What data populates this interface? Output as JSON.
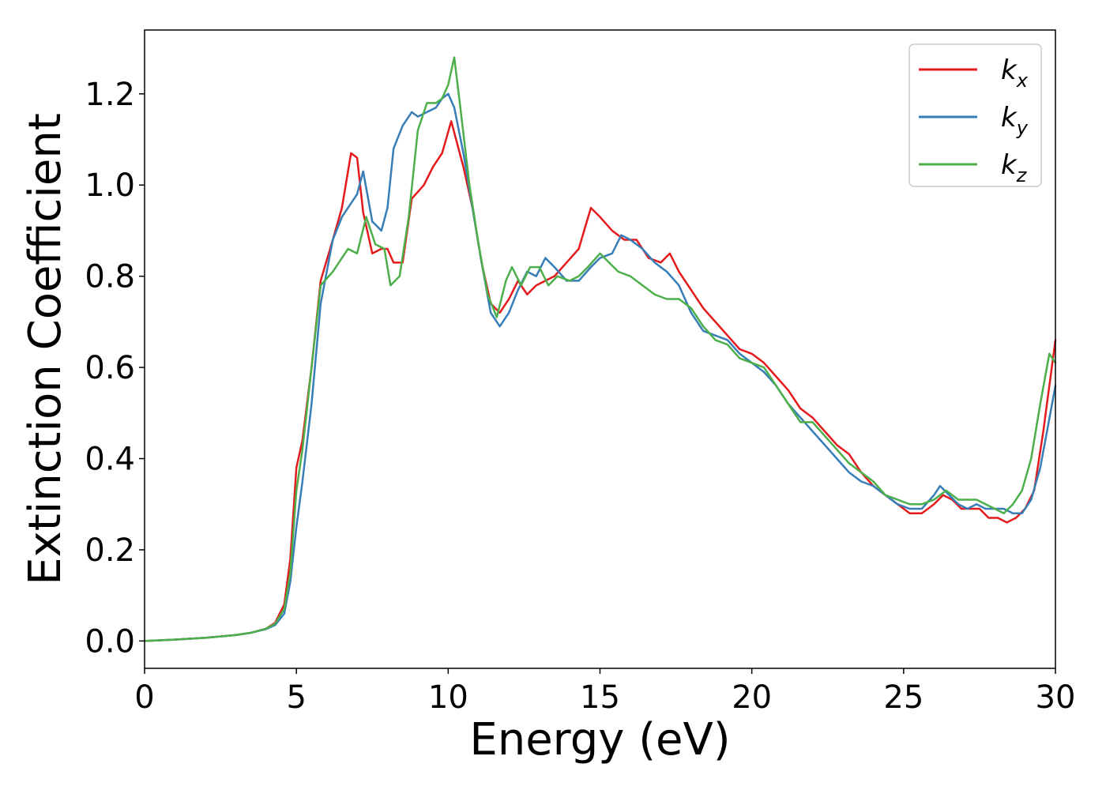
{
  "chart_data": {
    "type": "line",
    "title": "",
    "xlabel": "Energy (eV)",
    "ylabel": "Extinction Coefficient",
    "xlim": [
      0,
      30
    ],
    "ylim": [
      -0.06,
      1.34
    ],
    "xticks": [
      0,
      5,
      10,
      15,
      20,
      25,
      30
    ],
    "xtick_labels": [
      "0",
      "5",
      "10",
      "15",
      "20",
      "25",
      "30"
    ],
    "yticks": [
      0.0,
      0.2,
      0.4,
      0.6,
      0.8,
      1.0,
      1.2
    ],
    "ytick_labels": [
      "0.0",
      "0.2",
      "0.4",
      "0.6",
      "0.8",
      "1.0",
      "1.2"
    ],
    "grid": false,
    "legend_position": "top-right",
    "series": [
      {
        "name": "k",
        "subscript": "x",
        "color": "#e41a1c",
        "x": [
          0,
          1,
          2,
          3,
          3.5,
          4,
          4.3,
          4.6,
          4.8,
          5.0,
          5.2,
          5.5,
          5.8,
          6.2,
          6.5,
          6.8,
          7.0,
          7.2,
          7.5,
          7.8,
          8.0,
          8.2,
          8.5,
          8.8,
          9.2,
          9.5,
          9.8,
          10.1,
          10.3,
          10.5,
          10.8,
          11.1,
          11.4,
          11.7,
          12.0,
          12.3,
          12.6,
          12.9,
          13.2,
          13.5,
          13.9,
          14.3,
          14.7,
          15.0,
          15.4,
          15.8,
          16.2,
          16.6,
          17.0,
          17.3,
          17.6,
          18.0,
          18.4,
          18.8,
          19.2,
          19.6,
          20.0,
          20.4,
          20.8,
          21.2,
          21.6,
          22.0,
          22.4,
          22.8,
          23.2,
          23.6,
          24.0,
          24.4,
          24.8,
          25.2,
          25.6,
          26.0,
          26.3,
          26.6,
          26.9,
          27.2,
          27.5,
          27.8,
          28.1,
          28.4,
          28.7,
          29.0,
          29.3,
          29.6,
          30.0
        ],
        "y": [
          0.0,
          0.003,
          0.007,
          0.013,
          0.018,
          0.027,
          0.04,
          0.08,
          0.18,
          0.38,
          0.44,
          0.6,
          0.79,
          0.88,
          0.95,
          1.07,
          1.06,
          0.94,
          0.85,
          0.86,
          0.86,
          0.83,
          0.83,
          0.97,
          1.0,
          1.04,
          1.07,
          1.14,
          1.09,
          1.04,
          0.95,
          0.83,
          0.74,
          0.72,
          0.75,
          0.79,
          0.76,
          0.78,
          0.79,
          0.8,
          0.83,
          0.86,
          0.95,
          0.93,
          0.9,
          0.88,
          0.88,
          0.84,
          0.83,
          0.85,
          0.81,
          0.77,
          0.73,
          0.7,
          0.67,
          0.64,
          0.63,
          0.61,
          0.58,
          0.55,
          0.51,
          0.49,
          0.46,
          0.43,
          0.41,
          0.37,
          0.34,
          0.32,
          0.3,
          0.28,
          0.28,
          0.3,
          0.32,
          0.31,
          0.29,
          0.29,
          0.29,
          0.27,
          0.27,
          0.26,
          0.27,
          0.29,
          0.33,
          0.46,
          0.66
        ]
      },
      {
        "name": "k",
        "subscript": "y",
        "color": "#377eb8",
        "x": [
          0,
          1,
          2,
          3,
          3.5,
          4,
          4.3,
          4.6,
          4.8,
          5.0,
          5.2,
          5.5,
          5.8,
          6.2,
          6.5,
          6.8,
          7.0,
          7.2,
          7.5,
          7.8,
          8.0,
          8.2,
          8.5,
          8.8,
          9.0,
          9.3,
          9.6,
          9.8,
          10.0,
          10.2,
          10.5,
          10.8,
          11.1,
          11.4,
          11.7,
          12.0,
          12.3,
          12.6,
          12.9,
          13.2,
          13.5,
          13.9,
          14.3,
          14.7,
          15.0,
          15.4,
          15.7,
          16.0,
          16.4,
          16.8,
          17.2,
          17.6,
          18.0,
          18.4,
          18.8,
          19.2,
          19.6,
          20.0,
          20.4,
          20.8,
          21.2,
          21.6,
          22.0,
          22.4,
          22.8,
          23.2,
          23.6,
          24.0,
          24.4,
          24.8,
          25.2,
          25.6,
          26.0,
          26.2,
          26.5,
          26.8,
          27.1,
          27.4,
          27.7,
          28.0,
          28.3,
          28.6,
          28.9,
          29.2,
          29.5,
          30.0
        ],
        "y": [
          0.0,
          0.003,
          0.007,
          0.013,
          0.018,
          0.026,
          0.035,
          0.06,
          0.13,
          0.25,
          0.35,
          0.52,
          0.74,
          0.88,
          0.93,
          0.96,
          0.98,
          1.03,
          0.92,
          0.9,
          0.95,
          1.08,
          1.13,
          1.16,
          1.15,
          1.16,
          1.17,
          1.19,
          1.2,
          1.17,
          1.07,
          0.95,
          0.83,
          0.72,
          0.69,
          0.72,
          0.77,
          0.81,
          0.8,
          0.84,
          0.82,
          0.79,
          0.79,
          0.82,
          0.84,
          0.85,
          0.89,
          0.88,
          0.86,
          0.83,
          0.81,
          0.78,
          0.72,
          0.68,
          0.67,
          0.66,
          0.63,
          0.61,
          0.59,
          0.56,
          0.52,
          0.49,
          0.46,
          0.43,
          0.4,
          0.37,
          0.35,
          0.34,
          0.32,
          0.3,
          0.29,
          0.29,
          0.32,
          0.34,
          0.32,
          0.3,
          0.29,
          0.3,
          0.29,
          0.29,
          0.29,
          0.28,
          0.28,
          0.31,
          0.38,
          0.56
        ]
      },
      {
        "name": "k",
        "subscript": "z",
        "color": "#4daf4a",
        "x": [
          0,
          1,
          2,
          3,
          3.5,
          4,
          4.3,
          4.6,
          4.8,
          5.0,
          5.2,
          5.5,
          5.8,
          6.2,
          6.5,
          6.7,
          7.0,
          7.3,
          7.6,
          7.9,
          8.1,
          8.4,
          8.7,
          9.0,
          9.3,
          9.6,
          9.8,
          10.0,
          10.2,
          10.4,
          10.7,
          11.0,
          11.3,
          11.6,
          11.9,
          12.1,
          12.4,
          12.7,
          13.0,
          13.3,
          13.6,
          14.0,
          14.3,
          14.6,
          15.0,
          15.3,
          15.6,
          16.0,
          16.4,
          16.8,
          17.2,
          17.6,
          18.0,
          18.4,
          18.8,
          19.2,
          19.6,
          20.0,
          20.4,
          20.8,
          21.2,
          21.6,
          22.0,
          22.4,
          22.8,
          23.2,
          23.6,
          24.0,
          24.4,
          24.8,
          25.2,
          25.6,
          26.0,
          26.4,
          26.8,
          27.1,
          27.4,
          27.7,
          28.0,
          28.3,
          28.6,
          28.9,
          29.2,
          29.5,
          29.8,
          30.0
        ],
        "y": [
          0.0,
          0.003,
          0.007,
          0.013,
          0.018,
          0.027,
          0.038,
          0.07,
          0.15,
          0.33,
          0.42,
          0.6,
          0.78,
          0.81,
          0.84,
          0.86,
          0.85,
          0.93,
          0.87,
          0.86,
          0.78,
          0.8,
          0.93,
          1.12,
          1.18,
          1.18,
          1.19,
          1.22,
          1.28,
          1.17,
          1.0,
          0.87,
          0.76,
          0.71,
          0.79,
          0.82,
          0.78,
          0.82,
          0.82,
          0.78,
          0.8,
          0.79,
          0.8,
          0.82,
          0.85,
          0.83,
          0.81,
          0.8,
          0.78,
          0.76,
          0.75,
          0.75,
          0.73,
          0.69,
          0.66,
          0.65,
          0.62,
          0.61,
          0.6,
          0.56,
          0.52,
          0.48,
          0.48,
          0.45,
          0.42,
          0.39,
          0.37,
          0.35,
          0.32,
          0.31,
          0.3,
          0.3,
          0.31,
          0.33,
          0.31,
          0.31,
          0.31,
          0.3,
          0.29,
          0.28,
          0.3,
          0.33,
          0.4,
          0.52,
          0.63,
          0.61
        ]
      }
    ]
  }
}
